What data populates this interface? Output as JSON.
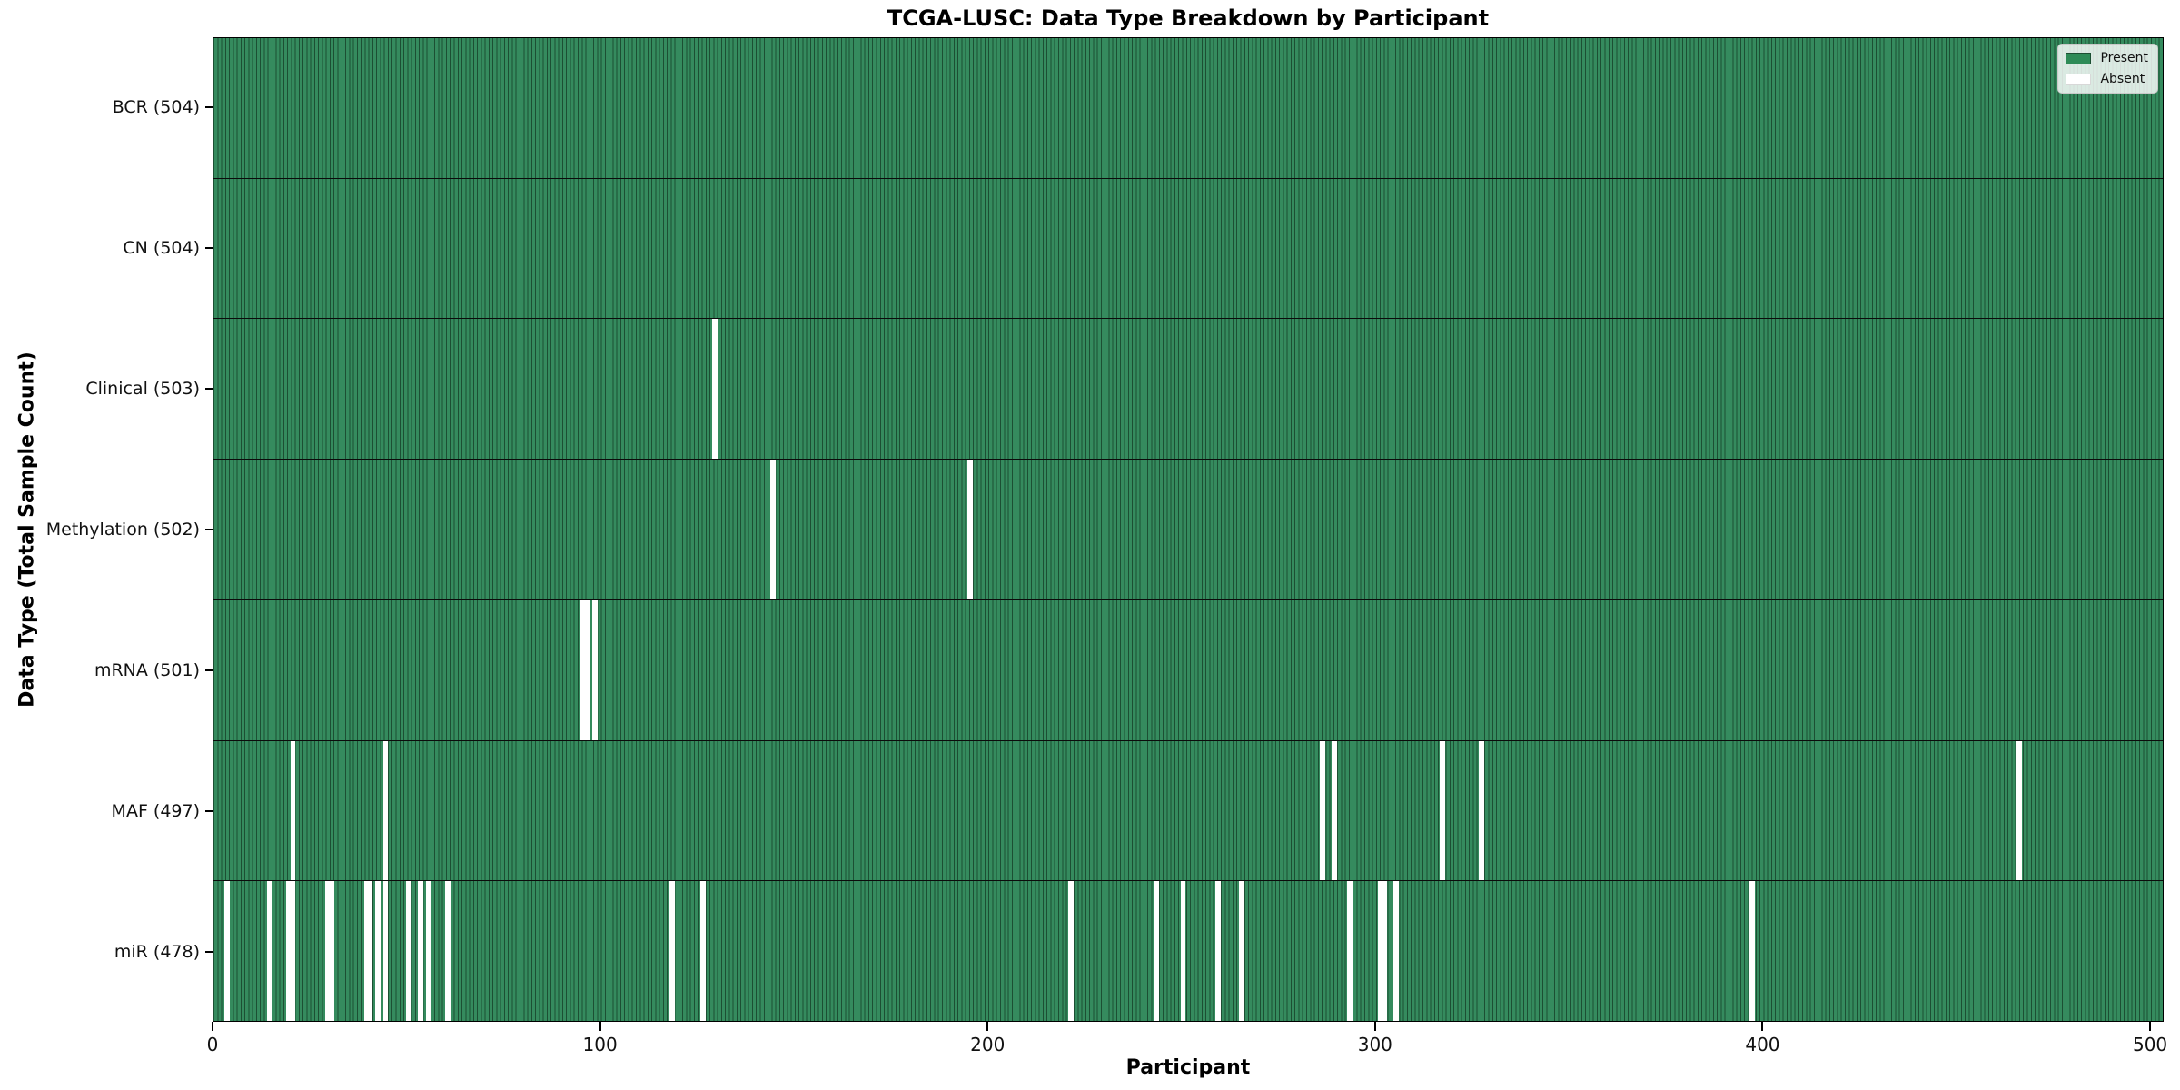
{
  "title": "TCGA-LUSC: Data Type Breakdown by Participant",
  "chart_data": {
    "type": "heatmap",
    "title": "TCGA-LUSC: Data Type Breakdown by Participant",
    "xlabel": "Participant",
    "ylabel": "Data Type (Total Sample Count)",
    "x_ticks": [
      0,
      100,
      200,
      300,
      400,
      500
    ],
    "x_domain": [
      0,
      503.5
    ],
    "total_participants": 504,
    "grid": false,
    "legend_position": "upper right",
    "legend": [
      {
        "label": "Present",
        "color": "#2e8b57"
      },
      {
        "label": "Absent",
        "color": "#ffffff"
      }
    ],
    "colors": {
      "present_fill": "#2e8b57",
      "bar_edge": "#1c4f33",
      "row_separator": "#0b0b0b",
      "absent_fill": "#ffffff"
    },
    "rows": [
      {
        "label": "BCR (504)",
        "data_type": "BCR",
        "present_count": 504,
        "absent_participants": []
      },
      {
        "label": "CN (504)",
        "data_type": "CN",
        "present_count": 504,
        "absent_participants": []
      },
      {
        "label": "Clinical (503)",
        "data_type": "Clinical",
        "present_count": 503,
        "absent_participants": [
          129
        ]
      },
      {
        "label": "Methylation (502)",
        "data_type": "Methylation",
        "present_count": 502,
        "absent_participants": [
          144,
          195
        ]
      },
      {
        "label": "mRNA (501)",
        "data_type": "mRNA",
        "present_count": 501,
        "absent_participants": [
          95,
          96,
          98
        ]
      },
      {
        "label": "MAF (497)",
        "data_type": "MAF",
        "present_count": 497,
        "absent_participants": [
          20,
          44,
          286,
          289,
          317,
          327,
          466
        ]
      },
      {
        "label": "miR (478)",
        "data_type": "miR",
        "present_count": 478,
        "absent_participants": [
          3,
          14,
          19,
          20,
          29,
          30,
          39,
          40,
          42,
          44,
          50,
          53,
          55,
          60,
          118,
          126,
          221,
          243,
          250,
          259,
          265,
          293,
          301,
          302,
          305,
          397
        ]
      }
    ]
  }
}
